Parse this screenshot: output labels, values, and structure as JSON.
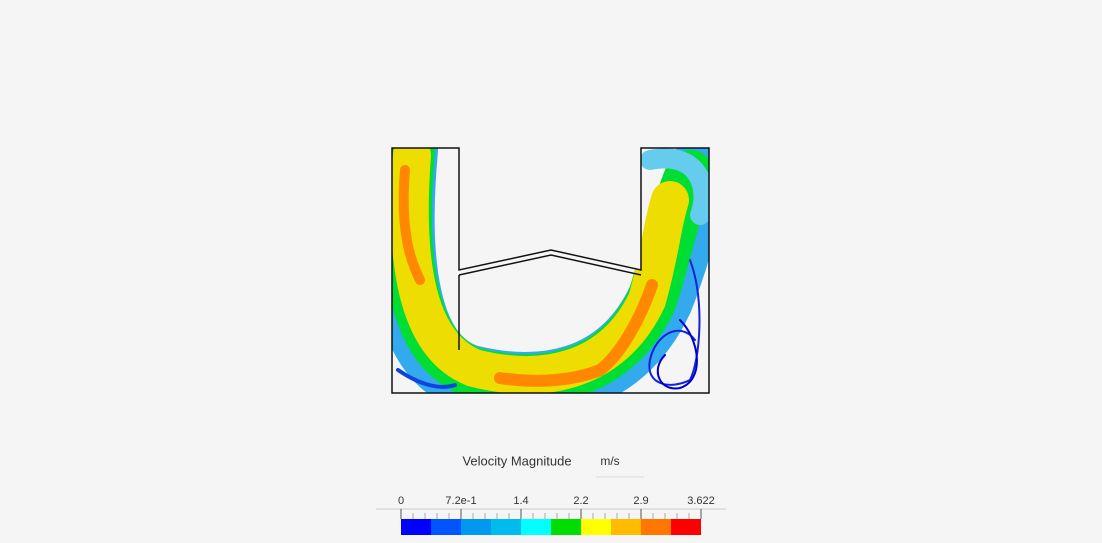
{
  "legend": {
    "title": "Velocity Magnitude",
    "unit": "m/s",
    "tick_labels": [
      "0",
      "7.2e-1",
      "1.4",
      "2.2",
      "2.9",
      "3.622"
    ],
    "colors": [
      "#0000ff",
      "#0055ff",
      "#0099ee",
      "#00bbee",
      "#00ffff",
      "#00dd00",
      "#ffff00",
      "#ffbb00",
      "#ff7700",
      "#ff0000"
    ]
  }
}
